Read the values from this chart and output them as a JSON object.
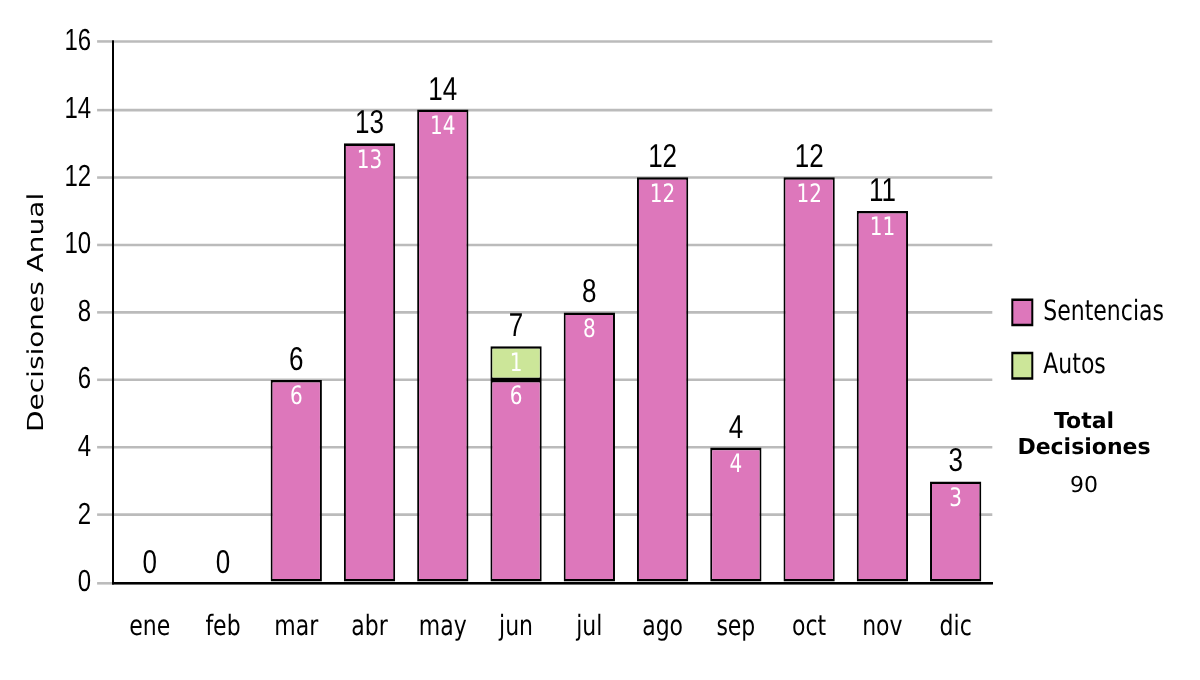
{
  "chart_data": {
    "type": "bar",
    "stacked": true,
    "ylabel": "Decisiones Anual",
    "categories": [
      "ene",
      "feb",
      "mar",
      "abr",
      "may",
      "jun",
      "jul",
      "ago",
      "sep",
      "oct",
      "nov",
      "dic"
    ],
    "series": [
      {
        "name": "Sentencias",
        "color": "#dd77bb",
        "values": [
          0,
          0,
          6,
          13,
          14,
          6,
          8,
          12,
          4,
          12,
          11,
          3
        ],
        "value_labels": [
          null,
          null,
          "6",
          "13",
          "14",
          "6",
          "8",
          "12",
          "4",
          "12",
          "11",
          "3"
        ]
      },
      {
        "name": "Autos",
        "color": "#cce699",
        "values": [
          0,
          0,
          0,
          0,
          0,
          1,
          0,
          0,
          0,
          0,
          0,
          0
        ],
        "value_labels": [
          null,
          null,
          null,
          null,
          null,
          "1",
          null,
          null,
          null,
          null,
          null,
          null
        ]
      }
    ],
    "totals": [
      "0",
      "0",
      "6",
      "13",
      "14",
      "7",
      "8",
      "12",
      "4",
      "12",
      "11",
      "3"
    ],
    "ylim": [
      0,
      16
    ],
    "yticks": [
      0,
      2,
      4,
      6,
      8,
      10,
      12,
      14,
      16
    ],
    "grid": "y",
    "legend": "right",
    "annotations": [
      "Total Decisiones",
      "90"
    ]
  }
}
